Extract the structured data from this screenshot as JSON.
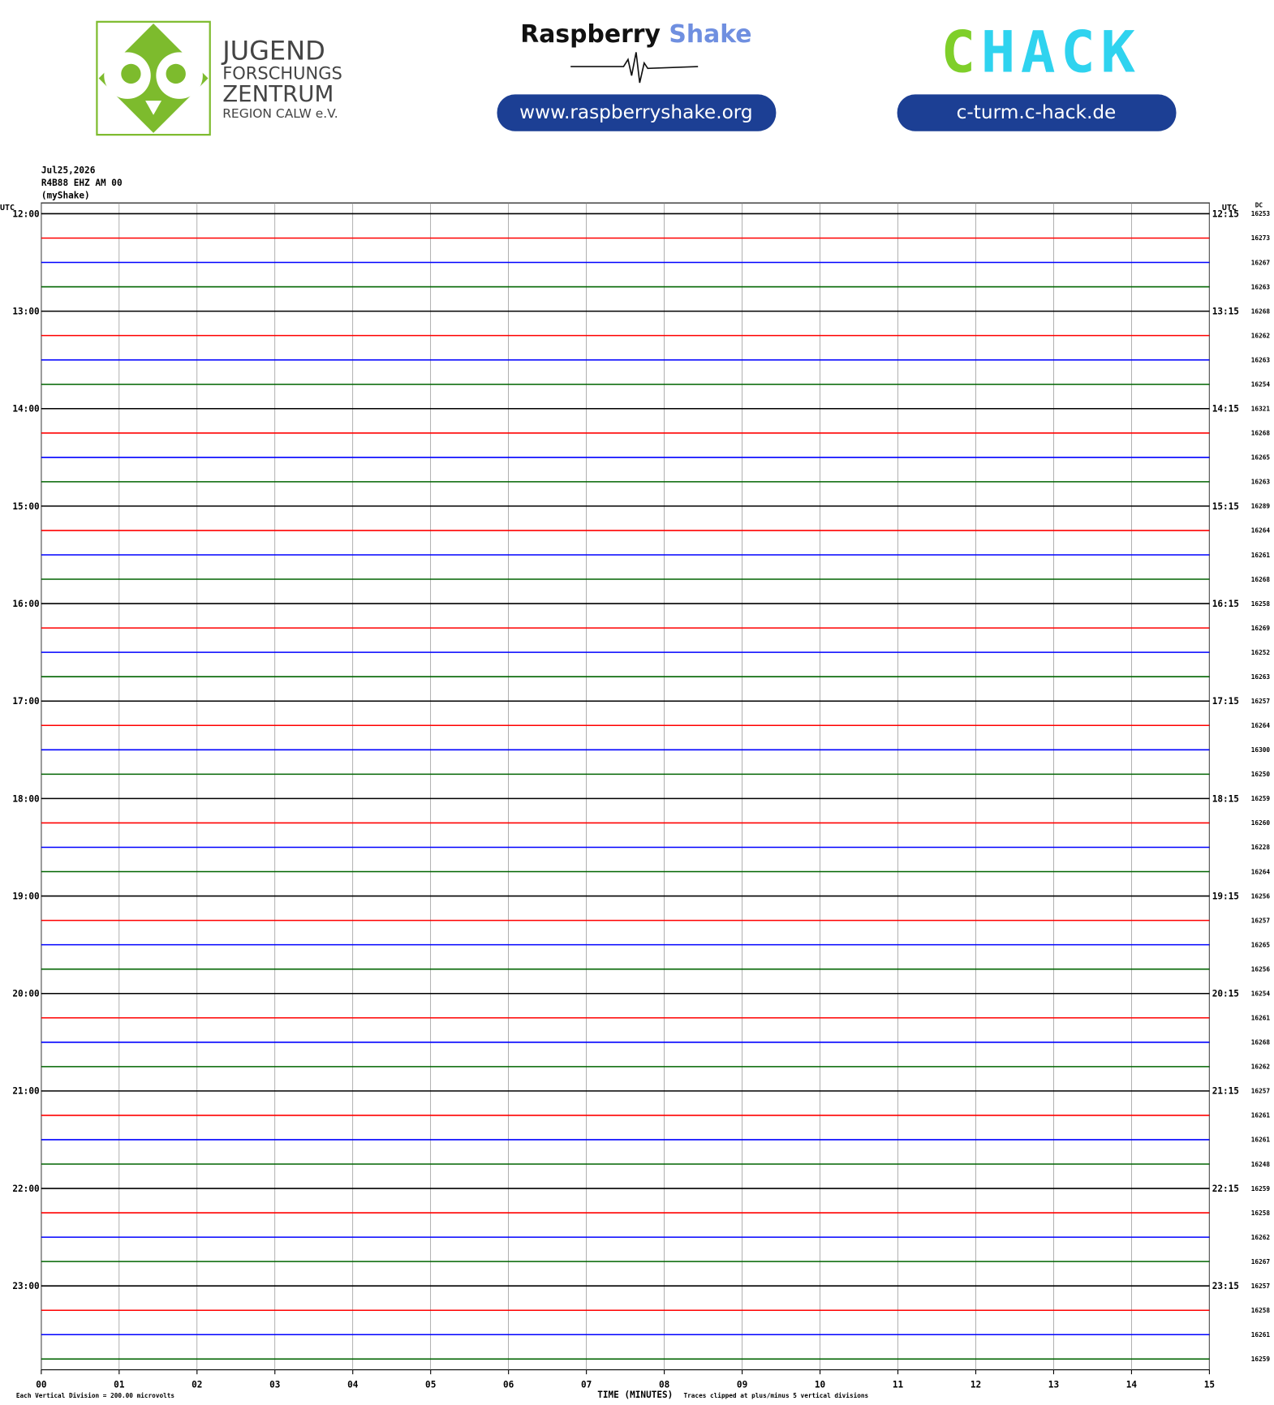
{
  "header": {
    "jfz_lines": [
      "JUGEND",
      "FORSCHUNGS",
      "ZENTRUM",
      "REGION CALW e.V."
    ],
    "rs_word1": "Raspberry",
    "rs_word2": "Shake",
    "rs_url": "www.raspberryshake.org",
    "chack_c": "C",
    "chack_rest": "HACK",
    "chack_url": "c-turm.c-hack.de"
  },
  "chart_data": {
    "type": "helicorder",
    "date": "Jul25,2026",
    "station": "R4B88 EHZ AM 00",
    "owner": "(myShake)",
    "utc_left": "UTC",
    "utc_right": "UTC",
    "dc_title": "DC",
    "x_labels": [
      "00",
      "01",
      "02",
      "03",
      "04",
      "05",
      "06",
      "07",
      "08",
      "09",
      "10",
      "11",
      "12",
      "13",
      "14",
      "15"
    ],
    "x_title": "TIME (MINUTES)",
    "scale_note": "Each Vertical Division =  200.00 microvolts",
    "clip_note": "Traces clipped at plus/minus 5 vertical divisions",
    "hours": [
      {
        "start": "12:00",
        "end": "12:15"
      },
      {
        "start": "13:00",
        "end": "13:15"
      },
      {
        "start": "14:00",
        "end": "14:15"
      },
      {
        "start": "15:00",
        "end": "15:15"
      },
      {
        "start": "16:00",
        "end": "16:15"
      },
      {
        "start": "17:00",
        "end": "17:15"
      },
      {
        "start": "18:00",
        "end": "18:15"
      },
      {
        "start": "19:00",
        "end": "19:15"
      },
      {
        "start": "20:00",
        "end": "20:15"
      },
      {
        "start": "21:00",
        "end": "21:15"
      },
      {
        "start": "22:00",
        "end": "22:15"
      },
      {
        "start": "23:00",
        "end": "23:15"
      }
    ],
    "dc_values": [
      16253,
      16273,
      16267,
      16263,
      16268,
      16262,
      16263,
      16254,
      16321,
      16268,
      16265,
      16263,
      16289,
      16264,
      16261,
      16268,
      16258,
      16269,
      16252,
      16263,
      16257,
      16264,
      16300,
      16250,
      16259,
      16260,
      16228,
      16264,
      16256,
      16257,
      16265,
      16256,
      16254,
      16261,
      16268,
      16262,
      16257,
      16261,
      16261,
      16248,
      16259,
      16258,
      16262,
      16267,
      16257,
      16258,
      16261,
      16259
    ],
    "trace_colors": [
      "#000000",
      "#ff0000",
      "#0000ff",
      "#006400"
    ]
  }
}
